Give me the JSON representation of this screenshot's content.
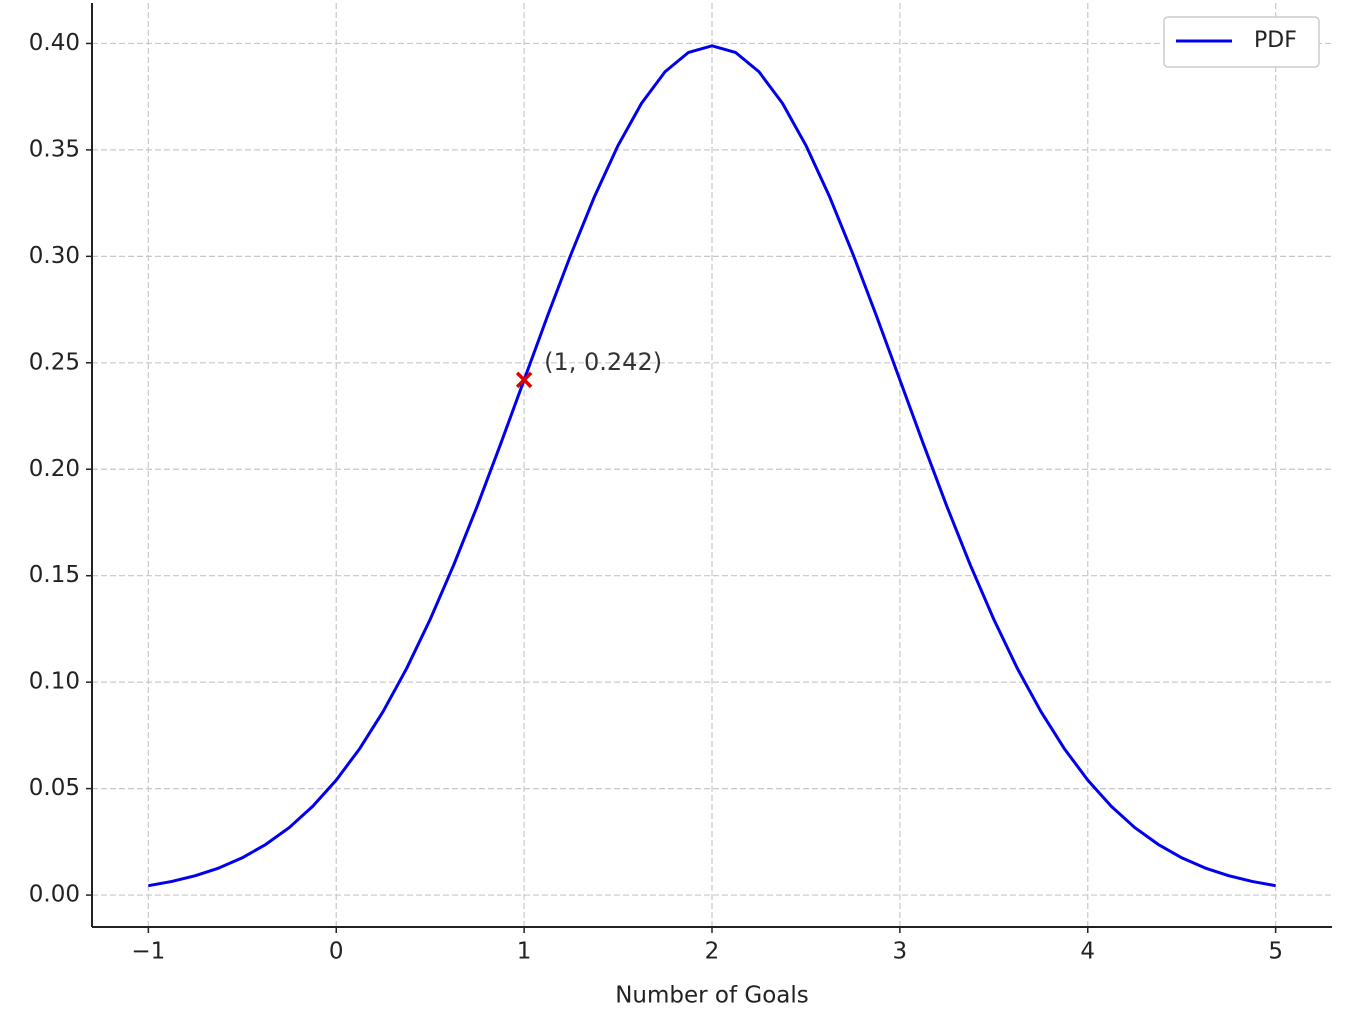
{
  "chart_data": {
    "type": "line",
    "x_label": "Number of Goals",
    "x": [
      -1,
      -0.875,
      -0.75,
      -0.625,
      -0.5,
      -0.375,
      -0.25,
      -0.125,
      0,
      0.125,
      0.25,
      0.375,
      0.5,
      0.625,
      0.75,
      0.875,
      1,
      1.125,
      1.25,
      1.375,
      1.5,
      1.625,
      1.75,
      1.875,
      2,
      2.125,
      2.25,
      2.375,
      2.5,
      2.625,
      2.75,
      2.875,
      3,
      3.125,
      3.25,
      3.375,
      3.5,
      3.625,
      3.75,
      3.875,
      4,
      4.125,
      4.25,
      4.375,
      4.5,
      4.625,
      4.75,
      4.875,
      5
    ],
    "series": [
      {
        "name": "PDF",
        "color": "#0000ee",
        "values": [
          0.0044,
          0.0064,
          0.0091,
          0.0127,
          0.0175,
          0.0238,
          0.0317,
          0.0417,
          0.054,
          0.0688,
          0.0863,
          0.1065,
          0.1295,
          0.155,
          0.1826,
          0.2119,
          0.242,
          0.2721,
          0.3011,
          0.3282,
          0.3521,
          0.3719,
          0.3867,
          0.3958,
          0.3989,
          0.3958,
          0.3867,
          0.3719,
          0.3521,
          0.3282,
          0.3011,
          0.2721,
          0.242,
          0.2119,
          0.1826,
          0.155,
          0.1295,
          0.1065,
          0.0863,
          0.0688,
          0.054,
          0.0417,
          0.0317,
          0.0238,
          0.0175,
          0.0127,
          0.0091,
          0.0064,
          0.0044
        ]
      }
    ],
    "annotation": {
      "text": "(1, 0.242)",
      "x": 1,
      "y": 0.242,
      "color": "#e00000"
    },
    "xlim": [
      -1.3,
      5.3
    ],
    "ylim": [
      -0.015,
      0.419
    ],
    "xticks": [
      {
        "value": -1,
        "label": "−1"
      },
      0,
      1,
      2,
      3,
      4,
      5
    ],
    "yticks": [
      {
        "value": 0,
        "label": "0.00"
      },
      {
        "value": 0.05,
        "label": "0.05"
      },
      {
        "value": 0.1,
        "label": "0.10"
      },
      {
        "value": 0.15,
        "label": "0.15"
      },
      {
        "value": 0.2,
        "label": "0.20"
      },
      {
        "value": 0.25,
        "label": "0.25"
      },
      {
        "value": 0.3,
        "label": "0.30"
      },
      {
        "value": 0.35,
        "label": "0.35"
      },
      {
        "value": 0.4,
        "label": "0.40"
      }
    ],
    "grid": true,
    "legend": "upper right"
  }
}
